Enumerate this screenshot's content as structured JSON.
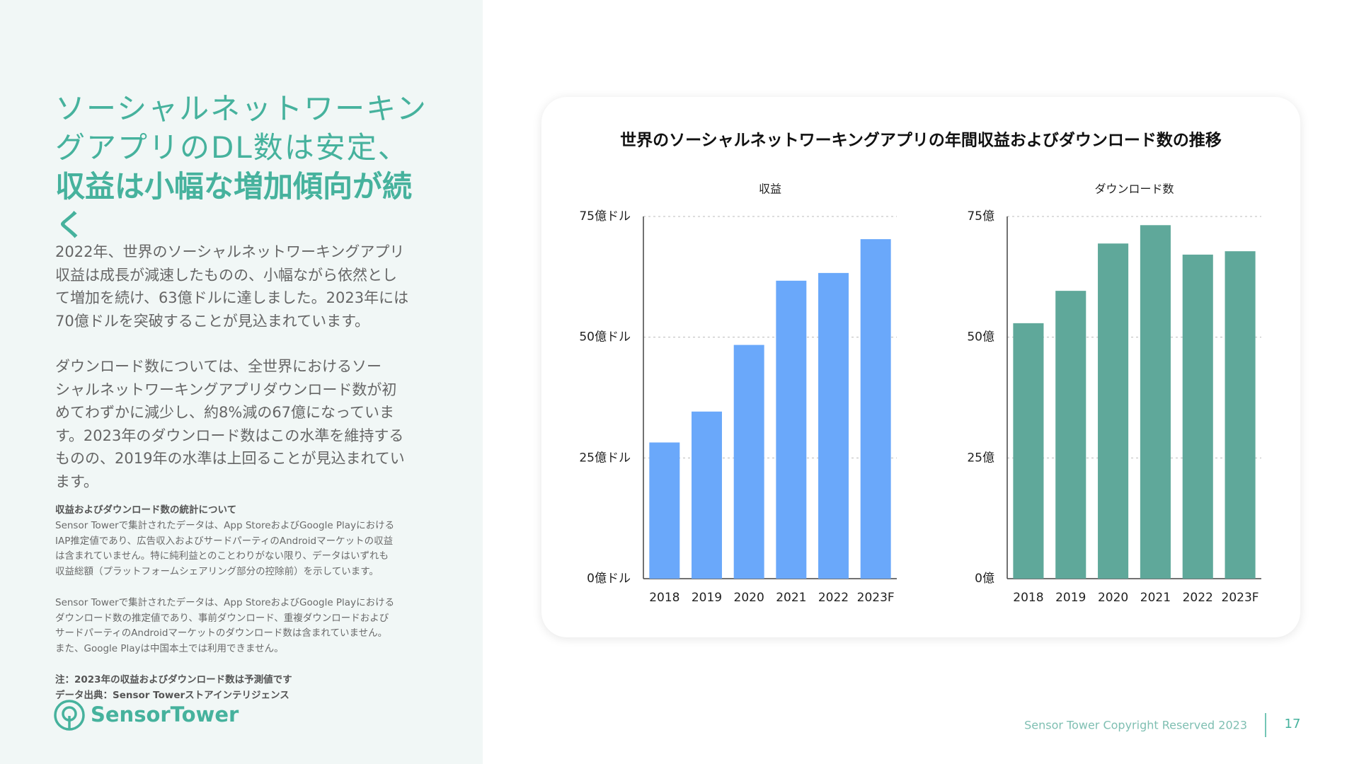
{
  "heading": {
    "light": [
      "ソーシャルネットワーキン",
      "グアプリのDL数は安定、"
    ],
    "bold": [
      "収益は小幅な増加傾向が続",
      "く"
    ]
  },
  "paragraphs": [
    [
      "2022年、世界のソーシャルネットワーキングアプリ",
      "収益は成長が減速したものの、小幅ながら依然とし",
      "て増加を続け、63億ドルに達しました。2023年には",
      "70億ドルを突破することが見込まれています。"
    ],
    [
      "ダウンロード数については、全世界におけるソー",
      "シャルネットワーキングアプリダウンロード数が初",
      "めてわずかに減少し、約8%減の67億になっていま",
      "す。2023年のダウンロード数はこの水準を維持する",
      "ものの、2019年の水準は上回ることが見込まれてい",
      "ます。"
    ]
  ],
  "notes": {
    "heading": "収益およびダウンロード数の統計について",
    "blocks": [
      [
        "Sensor Towerで集計されたデータは、App StoreおよびGoogle Playにおける",
        "IAP推定値であり、広告収入およびサードパーティのAndroidマーケットの収益",
        "は含まれていません。特に純利益とのことわりがない限り、データはいずれも",
        "収益総額（プラットフォームシェアリング部分の控除前）を示しています。"
      ],
      [
        "Sensor Towerで集計されたデータは、App StoreおよびGoogle Playにおける",
        "ダウンロード数の推定値であり、事前ダウンロード、重複ダウンロードおよび",
        "サードパーティのAndroidマーケットのダウンロード数は含まれていません。",
        "また、Google Playは中国本土では利用できません。"
      ]
    ],
    "footnotes": [
      "注：2023年の収益およびダウンロード数は予測値です",
      "データ出典：Sensor Towerストアインテリジェンス"
    ]
  },
  "logo": "SensorTower",
  "footer": {
    "copyright": "Sensor Tower Copyright Reserved 2023",
    "page": "17"
  },
  "chart_panel_title": "世界のソーシャルネットワーキングアプリの年間収益およびダウンロード数の推移",
  "chart_data": [
    {
      "type": "bar",
      "title": "収益",
      "categories": [
        "2018",
        "2019",
        "2020",
        "2021",
        "2022",
        "2023F"
      ],
      "values": [
        28.2,
        34.6,
        48.4,
        61.7,
        63.3,
        70.3
      ],
      "color": "#6aa8fa",
      "ylim": [
        0,
        75
      ],
      "yticks": [
        {
          "value": 0,
          "label": "0億ドル"
        },
        {
          "value": 25,
          "label": "25億ドル"
        },
        {
          "value": 50,
          "label": "50億ドル"
        },
        {
          "value": 75,
          "label": "75億ドル"
        }
      ],
      "grid": true
    },
    {
      "type": "bar",
      "title": "ダウンロード数",
      "categories": [
        "2018",
        "2019",
        "2020",
        "2021",
        "2022",
        "2023F"
      ],
      "values": [
        52.9,
        59.6,
        69.4,
        73.2,
        67.1,
        67.8
      ],
      "color": "#5fa89a",
      "ylim": [
        0,
        75
      ],
      "yticks": [
        {
          "value": 0,
          "label": "0億"
        },
        {
          "value": 25,
          "label": "25億"
        },
        {
          "value": 50,
          "label": "50億"
        },
        {
          "value": 75,
          "label": "75億"
        }
      ],
      "grid": true
    }
  ]
}
